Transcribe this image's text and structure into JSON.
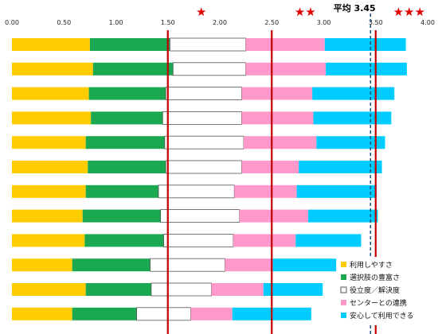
{
  "chart_data": {
    "type": "bar",
    "stacked": true,
    "orientation": "horizontal",
    "xlim": [
      0,
      4
    ],
    "x_ticks": [
      "0.00",
      "0.50",
      "1.00",
      "1.50",
      "2.00",
      "2.50",
      "3.00",
      "3.50",
      "4.00"
    ],
    "gridlines": false,
    "legend_position": "bottom-right",
    "series": [
      {
        "name": "利用しやすさ",
        "color": "#ffcc00",
        "values": [
          0.75,
          0.78,
          0.74,
          0.76,
          0.71,
          0.73,
          0.71,
          0.68,
          0.7,
          0.58,
          0.71,
          0.58
        ]
      },
      {
        "name": "選択肢の豊富さ",
        "color": "#1aa850",
        "values": [
          0.77,
          0.77,
          0.74,
          0.69,
          0.76,
          0.75,
          0.7,
          0.75,
          0.76,
          0.75,
          0.63,
          0.62
        ]
      },
      {
        "name": "役立度／解決度",
        "color": "#ffffff",
        "edge": "#555555",
        "values": [
          0.73,
          0.7,
          0.73,
          0.76,
          0.76,
          0.73,
          0.73,
          0.76,
          0.67,
          0.72,
          0.58,
          0.52
        ]
      },
      {
        "name": "センターとの連携",
        "color": "#ff99cc",
        "values": [
          0.76,
          0.77,
          0.68,
          0.69,
          0.7,
          0.55,
          0.6,
          0.66,
          0.6,
          0.46,
          0.5,
          0.4
        ]
      },
      {
        "name": "安心して利用できる",
        "color": "#00ccff",
        "values": [
          0.78,
          0.78,
          0.79,
          0.75,
          0.66,
          0.8,
          0.77,
          0.67,
          0.63,
          0.61,
          0.57,
          0.76
        ]
      }
    ],
    "reference_lines": [
      {
        "value": 1.5,
        "color": "#c00000",
        "style": "solid",
        "stars": "★"
      },
      {
        "value": 2.5,
        "color": "#c00000",
        "style": "solid",
        "stars": "★★"
      },
      {
        "value": 3.45,
        "color": "#1f4e79",
        "style": "dashed",
        "label": "平均 3.45"
      },
      {
        "value": 3.5,
        "color": "#c00000",
        "style": "solid",
        "stars": "★★★"
      }
    ]
  },
  "colors": {
    "ref_line_red": "#c00000",
    "avg_line_blue": "#1f4e79",
    "star_red": "#e30000",
    "bar_outline": "#555555"
  }
}
